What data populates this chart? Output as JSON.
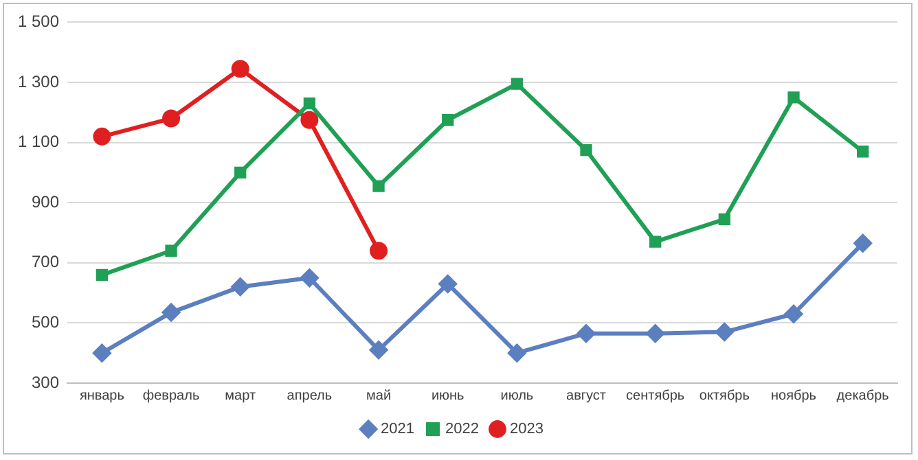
{
  "chart_data": {
    "type": "line",
    "categories": [
      "январь",
      "февраль",
      "март",
      "апрель",
      "май",
      "июнь",
      "июль",
      "август",
      "сентябрь",
      "октябрь",
      "ноябрь",
      "декабрь"
    ],
    "series": [
      {
        "name": "2021",
        "color": "#5b7fbf",
        "marker": "diamond",
        "values": [
          400,
          535,
          620,
          650,
          410,
          630,
          400,
          465,
          465,
          470,
          530,
          765
        ]
      },
      {
        "name": "2022",
        "color": "#1fa055",
        "marker": "square",
        "values": [
          660,
          740,
          1000,
          1230,
          955,
          1175,
          1295,
          1075,
          770,
          845,
          1250,
          1070
        ]
      },
      {
        "name": "2023",
        "color": "#e02020",
        "marker": "circle",
        "values": [
          1120,
          1180,
          1345,
          1175,
          740,
          null,
          null,
          null,
          null,
          null,
          null,
          null
        ]
      }
    ],
    "ylim": [
      300,
      1500
    ],
    "yticks": [
      300,
      500,
      700,
      900,
      {
        "value": 1100,
        "label": "1 100"
      },
      {
        "value": 1300,
        "label": "1 300"
      },
      {
        "value": 1500,
        "label": "1 500"
      }
    ],
    "grid": "y",
    "legend": "bottom"
  }
}
